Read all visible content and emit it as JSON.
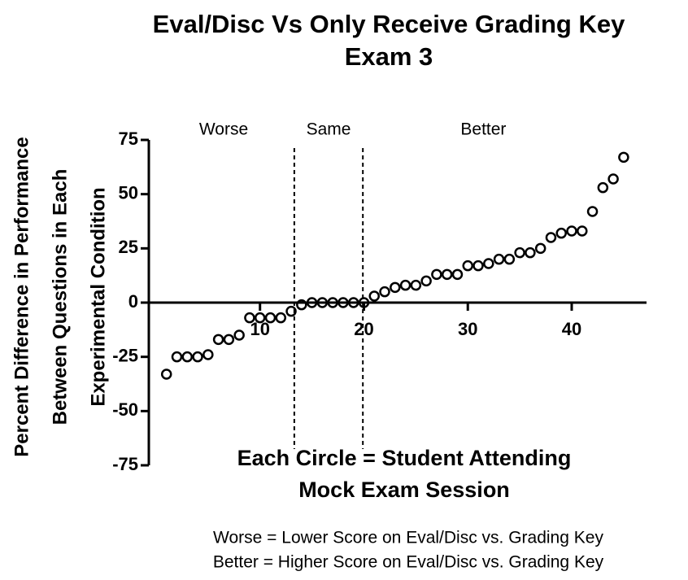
{
  "chart_data": {
    "type": "scatter",
    "title": [
      "Eval/Disc Vs Only Receive Grading Key",
      "Exam 3"
    ],
    "ylabel": [
      "Percent Difference in Performance",
      "Between Questions in Each",
      "Experimental Condition"
    ],
    "x": [
      1,
      2,
      3,
      4,
      5,
      6,
      7,
      8,
      9,
      10,
      11,
      12,
      13,
      14,
      15,
      16,
      17,
      18,
      19,
      20,
      21,
      22,
      23,
      24,
      25,
      26,
      27,
      28,
      29,
      30,
      31,
      32,
      33,
      34,
      35,
      36,
      37,
      38,
      39,
      40,
      41,
      42,
      43,
      44,
      45
    ],
    "values": [
      -33,
      -25,
      -25,
      -25,
      -24,
      -17,
      -17,
      -15,
      -7,
      -7,
      -7,
      -7,
      -4,
      -1,
      0,
      0,
      0,
      0,
      0,
      0,
      3,
      5,
      7,
      8,
      8,
      10,
      13,
      13,
      13,
      17,
      17,
      18,
      20,
      20,
      23,
      23,
      25,
      30,
      32,
      33,
      33,
      42,
      53,
      57,
      67
    ],
    "color": "#000000",
    "xlim": [
      -0.7,
      47.2
    ],
    "xticks": [
      10,
      20,
      30,
      40
    ],
    "ylim": [
      -75,
      75
    ],
    "yticks": [
      -75,
      -50,
      -25,
      0,
      25,
      50,
      75
    ],
    "vlines": [
      13.3,
      19.9
    ],
    "regions": [
      {
        "label": "Worse",
        "x": 6.5
      },
      {
        "label": "Same",
        "x": 16.6
      },
      {
        "label": "Better",
        "x": 31.5
      }
    ],
    "annotation": [
      "Each Circle = Student Attending",
      "Mock Exam Session"
    ],
    "footnotes": [
      "Worse = Lower Score on Eval/Disc vs. Grading Key",
      "Better = Higher Score on Eval/Disc vs. Grading Key"
    ]
  }
}
